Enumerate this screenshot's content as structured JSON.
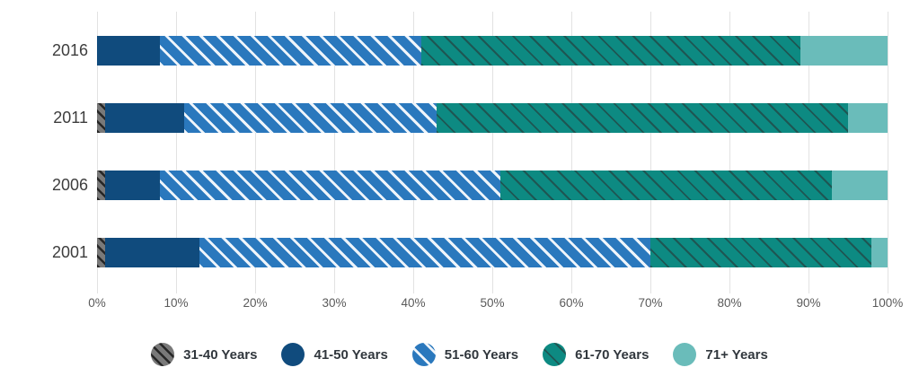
{
  "chart_data": {
    "type": "bar",
    "orientation": "horizontal",
    "stacked": true,
    "unit": "percent",
    "title": "",
    "categories": [
      "2016",
      "2011",
      "2006",
      "2001"
    ],
    "series": [
      {
        "name": "31-40 Years",
        "color": "#6a6a6a",
        "pattern": "hatch-gray",
        "values": [
          0,
          1,
          1,
          1
        ]
      },
      {
        "name": "41-50 Years",
        "color": "#104b7d",
        "pattern": "solid",
        "values": [
          8,
          10,
          7,
          12
        ]
      },
      {
        "name": "51-60 Years",
        "color": "#2a78bd",
        "pattern": "stripe-light",
        "values": [
          33,
          32,
          43,
          57
        ]
      },
      {
        "name": "61-70 Years",
        "color": "#0d8a82",
        "pattern": "hatch-dark",
        "values": [
          48,
          52,
          42,
          28
        ]
      },
      {
        "name": "71+ Years",
        "color": "#6abcba",
        "pattern": "solid",
        "values": [
          11,
          5,
          7,
          2
        ]
      }
    ],
    "x_axis": {
      "min": 0,
      "max": 100,
      "tick_labels": [
        "0%",
        "10%",
        "20%",
        "30%",
        "40%",
        "50%",
        "60%",
        "70%",
        "80%",
        "90%",
        "100%"
      ]
    },
    "legend": {
      "position": "bottom",
      "labels": [
        "31-40 Years",
        "41-50 Years",
        "51-60 Years",
        "61-70 Years",
        "71+ Years"
      ]
    },
    "grid": true,
    "colors": {
      "gridline": "#e2e2e2",
      "category_label": "#3d3d3d",
      "tick_label": "#5a5a5a",
      "legend_label": "#31373d",
      "background": "#ffffff"
    }
  }
}
